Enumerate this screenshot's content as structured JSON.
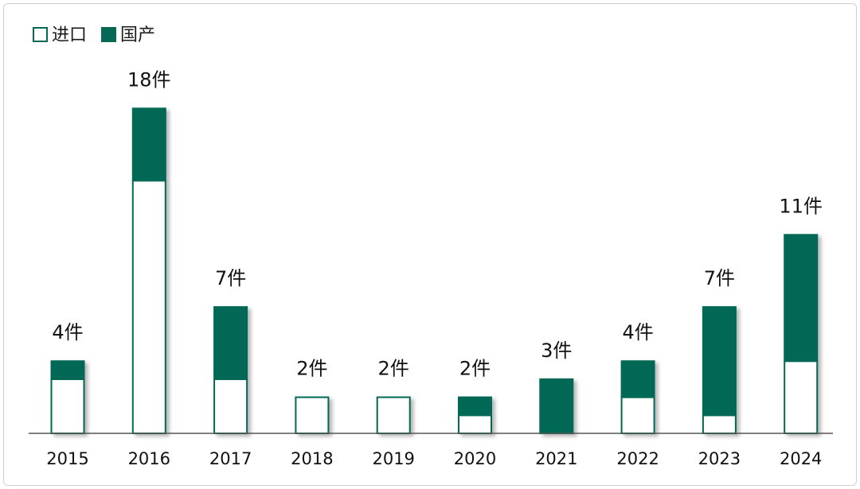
{
  "chart_data": {
    "type": "bar",
    "stacked": true,
    "title": "",
    "xlabel": "",
    "ylabel": "",
    "categories": [
      "2015",
      "2016",
      "2017",
      "2018",
      "2019",
      "2020",
      "2021",
      "2022",
      "2023",
      "2024"
    ],
    "series": [
      {
        "name": "进口",
        "values": [
          3,
          14,
          3,
          2,
          2,
          1,
          0,
          2,
          1,
          4
        ]
      },
      {
        "name": "国产",
        "values": [
          1,
          4,
          4,
          0,
          0,
          1,
          3,
          2,
          6,
          7
        ]
      }
    ],
    "totals": [
      4,
      18,
      7,
      2,
      2,
      2,
      3,
      4,
      7,
      11
    ],
    "data_labels": [
      "4件",
      "18件",
      "7件",
      "2件",
      "2件",
      "2件",
      "3件",
      "4件",
      "7件",
      "11件"
    ],
    "ylim": [
      0,
      18
    ],
    "grid": false,
    "legend_position": "top-left",
    "colors": {
      "imported_fill": "#ffffff",
      "domestic_fill": "#066855",
      "bar_stroke": "#066855",
      "axis": "#555555"
    }
  }
}
